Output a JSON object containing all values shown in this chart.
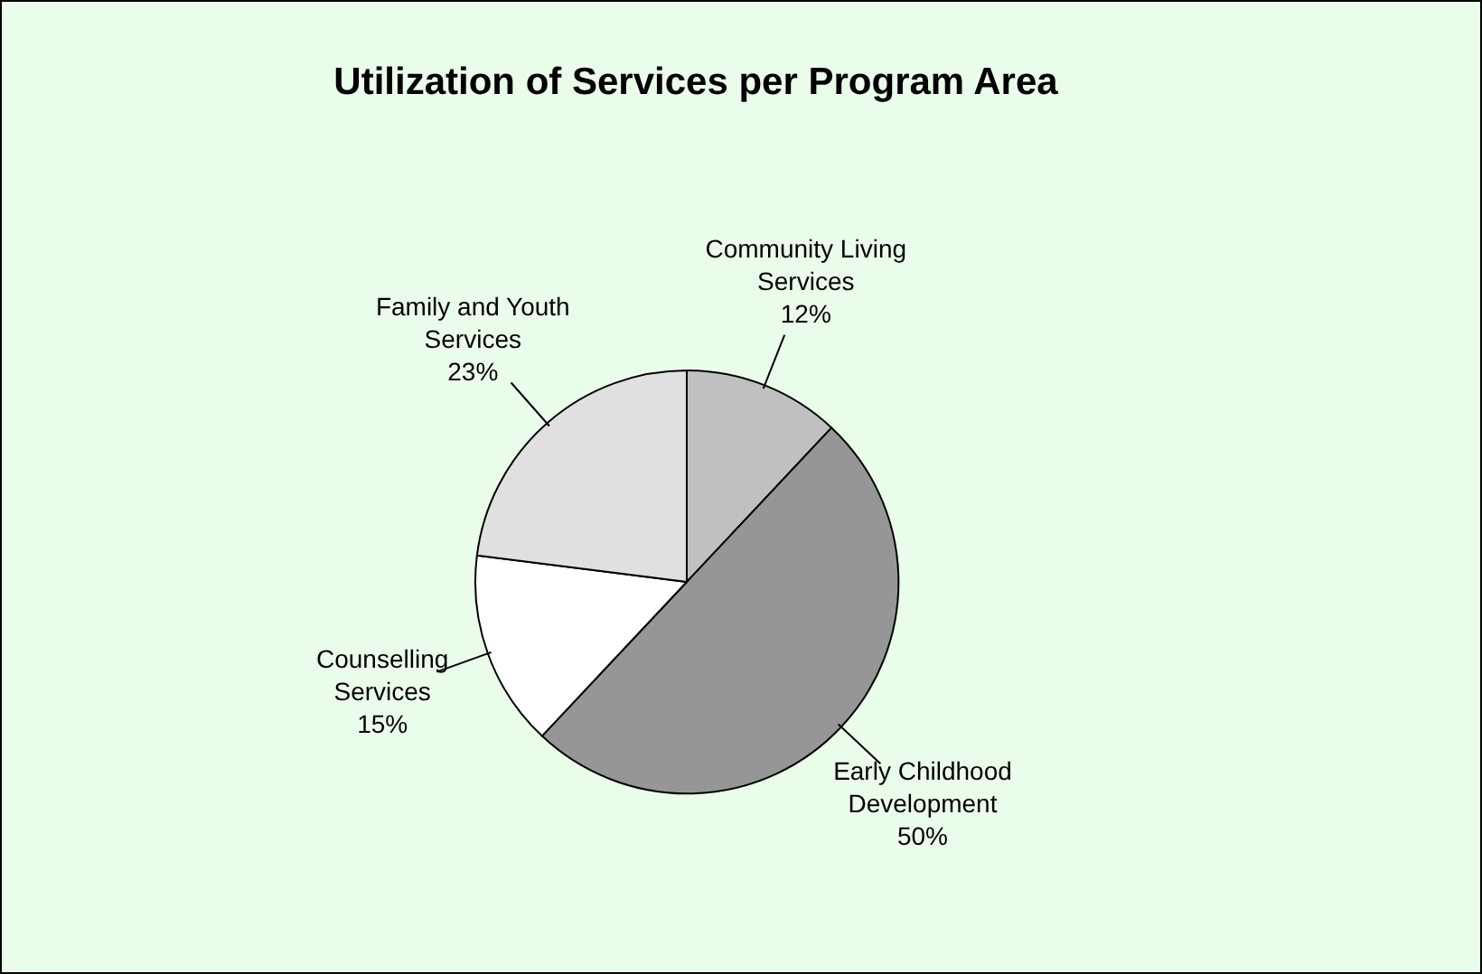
{
  "chart_data": {
    "type": "pie",
    "title": "Utilization of Services per Program Area",
    "categories": [
      "Community Living Services",
      "Early Childhood Development",
      "Counselling Services",
      "Family and Youth Services"
    ],
    "values": [
      12,
      50,
      15,
      23
    ],
    "colors": [
      "#c0c0c0",
      "#969696",
      "#ffffff",
      "#e0e0e0"
    ],
    "value_labels": [
      "12%",
      "50%",
      "15%",
      "23%"
    ]
  }
}
